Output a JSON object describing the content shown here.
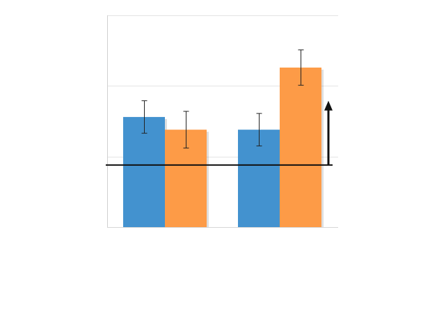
{
  "chart_data": {
    "type": "bar",
    "title": "",
    "xlabel": "",
    "ylabel": "",
    "categories": [
      "",
      ""
    ],
    "ylim": [
      0,
      3
    ],
    "grid": true,
    "gridlines": [
      0,
      1,
      2,
      3
    ],
    "series": [
      {
        "values": [
          1.56,
          1.38
        ],
        "errors": [
          0.23,
          0.23
        ],
        "color": "#4392cf"
      },
      {
        "values": [
          1.38,
          2.26
        ],
        "errors": [
          0.26,
          0.25
        ],
        "color": "#fd9b47"
      }
    ],
    "baseline": {
      "value": 0.88,
      "color": "#111111"
    },
    "arrow": {
      "from": 0.88,
      "to": 1.79,
      "color": "#111111",
      "direction": "up"
    }
  }
}
